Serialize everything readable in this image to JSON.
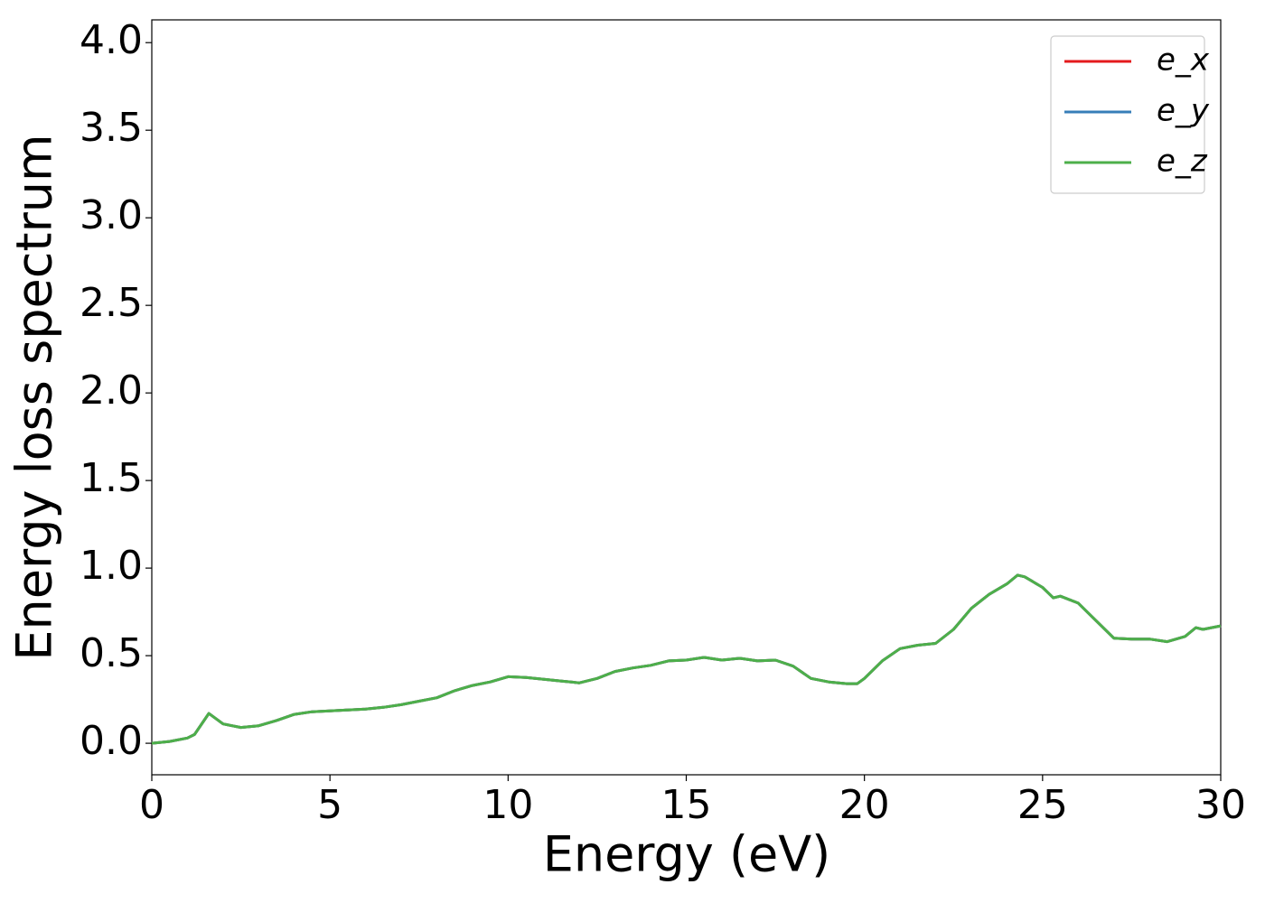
{
  "chart_data": {
    "type": "line",
    "x_label": "Energy (eV)",
    "y_label": "Energy loss spectrum",
    "x": [
      0,
      0.5,
      1.0,
      1.2,
      1.6,
      2.0,
      2.5,
      3.0,
      3.5,
      4.0,
      4.5,
      5.0,
      5.5,
      6.0,
      6.5,
      7.0,
      7.5,
      8.0,
      8.5,
      9.0,
      9.5,
      10.0,
      10.5,
      11.0,
      11.5,
      12.0,
      12.5,
      13.0,
      13.5,
      14.0,
      14.5,
      15.0,
      15.5,
      16.0,
      16.5,
      17.0,
      17.5,
      18.0,
      18.5,
      19.0,
      19.5,
      19.8,
      20.0,
      20.5,
      21.0,
      21.5,
      22.0,
      22.5,
      23.0,
      23.5,
      24.0,
      24.3,
      24.5,
      25.0,
      25.3,
      25.5,
      26.0,
      26.5,
      27.0,
      27.5,
      28.0,
      28.5,
      29.0,
      29.3,
      29.5,
      30.0
    ],
    "series": [
      {
        "name": "e_x",
        "color": "#e41a1c",
        "values": [
          0.0,
          0.01,
          0.03,
          0.05,
          0.17,
          0.11,
          0.09,
          0.1,
          0.13,
          0.165,
          0.18,
          0.185,
          0.19,
          0.195,
          0.205,
          0.22,
          0.24,
          0.26,
          0.3,
          0.33,
          0.35,
          0.38,
          0.375,
          0.365,
          0.355,
          0.345,
          0.37,
          0.41,
          0.43,
          0.445,
          0.47,
          0.475,
          0.49,
          0.475,
          0.485,
          0.47,
          0.475,
          0.44,
          0.37,
          0.35,
          0.34,
          0.34,
          0.37,
          0.47,
          0.54,
          0.56,
          0.57,
          0.65,
          0.77,
          0.85,
          0.91,
          0.96,
          0.95,
          0.89,
          0.83,
          0.84,
          0.8,
          0.7,
          0.6,
          0.595,
          0.595,
          0.58,
          0.61,
          0.66,
          0.65,
          0.67
        ]
      },
      {
        "name": "e_y",
        "color": "#377eb8",
        "values": [
          0.0,
          0.01,
          0.03,
          0.05,
          0.17,
          0.11,
          0.09,
          0.1,
          0.13,
          0.165,
          0.18,
          0.185,
          0.19,
          0.195,
          0.205,
          0.22,
          0.24,
          0.26,
          0.3,
          0.33,
          0.35,
          0.38,
          0.375,
          0.365,
          0.355,
          0.345,
          0.37,
          0.41,
          0.43,
          0.445,
          0.47,
          0.475,
          0.49,
          0.475,
          0.485,
          0.47,
          0.475,
          0.44,
          0.37,
          0.35,
          0.34,
          0.34,
          0.37,
          0.47,
          0.54,
          0.56,
          0.57,
          0.65,
          0.77,
          0.85,
          0.91,
          0.96,
          0.95,
          0.89,
          0.83,
          0.84,
          0.8,
          0.7,
          0.6,
          0.595,
          0.595,
          0.58,
          0.61,
          0.66,
          0.65,
          0.67
        ]
      },
      {
        "name": "e_z",
        "color": "#4daf4a",
        "values": [
          0.0,
          0.01,
          0.03,
          0.05,
          0.17,
          0.11,
          0.09,
          0.1,
          0.13,
          0.165,
          0.18,
          0.185,
          0.19,
          0.195,
          0.205,
          0.22,
          0.24,
          0.26,
          0.3,
          0.33,
          0.35,
          0.38,
          0.375,
          0.365,
          0.355,
          0.345,
          0.37,
          0.41,
          0.43,
          0.445,
          0.47,
          0.475,
          0.49,
          0.475,
          0.485,
          0.47,
          0.475,
          0.44,
          0.37,
          0.35,
          0.34,
          0.34,
          0.37,
          0.47,
          0.54,
          0.56,
          0.57,
          0.65,
          0.77,
          0.85,
          0.91,
          0.96,
          0.95,
          0.89,
          0.83,
          0.84,
          0.8,
          0.7,
          0.6,
          0.595,
          0.595,
          0.58,
          0.61,
          0.66,
          0.65,
          0.67
        ]
      }
    ],
    "xlim": [
      0,
      30
    ],
    "xticks": [
      0,
      5,
      10,
      15,
      20,
      25,
      30
    ],
    "ylim": [
      -0.18,
      4.13
    ],
    "yticks": [
      {
        "value": 0,
        "label": "0.0"
      },
      0.5,
      {
        "value": 1,
        "label": "1.0"
      },
      1.5,
      {
        "value": 2,
        "label": "2.0"
      },
      2.5,
      {
        "value": 3,
        "label": "3.0"
      },
      3.5,
      {
        "value": 4,
        "label": "4.0"
      }
    ],
    "grid": false,
    "legend": "upper-right"
  }
}
